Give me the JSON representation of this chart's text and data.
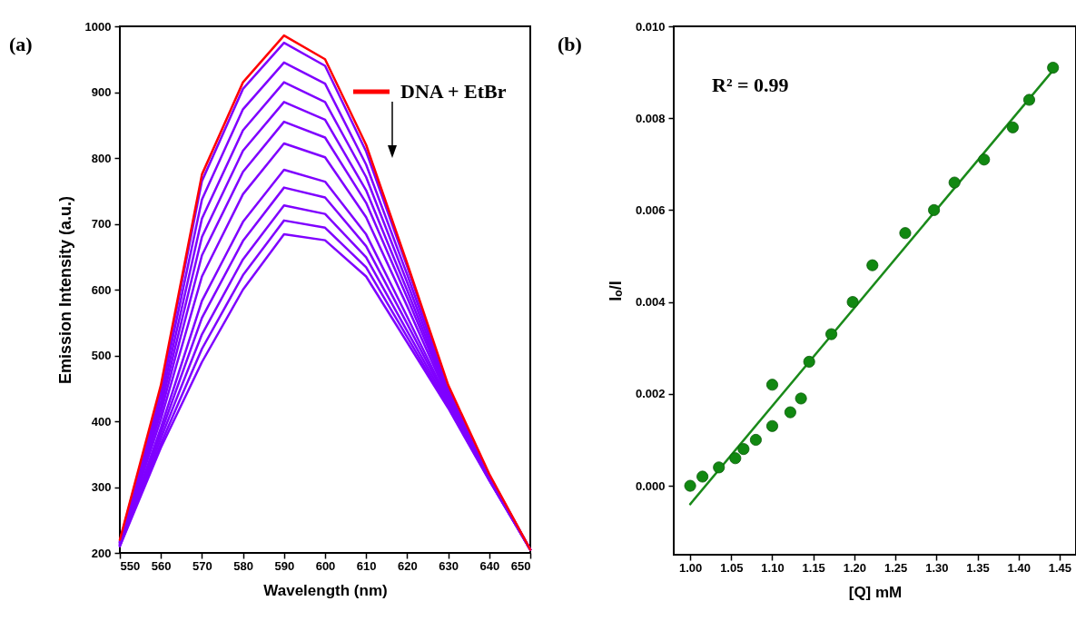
{
  "chart_data": [
    {
      "type": "line",
      "title": "(a)",
      "xlabel": "Wavelength (nm)",
      "ylabel": "Emission Intensity (a.u.)",
      "xlim": [
        550,
        650
      ],
      "ylim": [
        200,
        1000
      ],
      "xticks": [
        550,
        560,
        570,
        580,
        590,
        600,
        610,
        620,
        630,
        640,
        650
      ],
      "yticks": [
        200,
        300,
        400,
        500,
        600,
        700,
        800,
        900,
        1000
      ],
      "legend": "top right",
      "line_style": "solid",
      "x": [
        550,
        560,
        570,
        580,
        590,
        600,
        610,
        620,
        630,
        640,
        650
      ],
      "series": [
        {
          "color": "#7f00ff",
          "values": [
            210,
            360,
            490,
            600,
            684,
            675,
            620,
            520,
            420,
            310,
            205
          ]
        },
        {
          "color": "#7f00ff",
          "values": [
            211,
            366,
            510,
            622,
            705,
            694,
            634,
            528,
            422,
            311,
            205
          ]
        },
        {
          "color": "#7f00ff",
          "values": [
            211,
            374,
            532,
            646,
            728,
            715,
            649,
            537,
            425,
            311,
            205
          ]
        },
        {
          "color": "#7f00ff",
          "values": [
            212,
            382,
            557,
            674,
            755,
            740,
            666,
            548,
            428,
            312,
            205
          ]
        },
        {
          "color": "#7f00ff",
          "values": [
            213,
            390,
            583,
            703,
            782,
            764,
            684,
            559,
            431,
            313,
            205
          ]
        },
        {
          "color": "#7f00ff",
          "values": [
            214,
            403,
            620,
            745,
            822,
            801,
            710,
            575,
            435,
            314,
            205
          ]
        },
        {
          "color": "#7f00ff",
          "values": [
            215,
            413,
            652,
            779,
            855,
            831,
            732,
            588,
            439,
            315,
            205
          ]
        },
        {
          "color": "#7f00ff",
          "values": [
            216,
            422,
            680,
            811,
            885,
            858,
            751,
            599,
            442,
            316,
            205
          ]
        },
        {
          "color": "#7f00ff",
          "values": [
            216,
            431,
            708,
            842,
            915,
            885,
            771,
            611,
            445,
            316,
            205
          ]
        },
        {
          "color": "#7f00ff",
          "values": [
            217,
            441,
            737,
            874,
            945,
            913,
            790,
            623,
            449,
            317,
            205
          ]
        },
        {
          "color": "#7f00ff",
          "values": [
            218,
            450,
            765,
            905,
            975,
            940,
            810,
            635,
            452,
            318,
            205
          ]
        },
        {
          "name": "DNA + EtBr",
          "color": "#ff0000",
          "values": [
            220,
            455,
            775,
            915,
            986,
            950,
            820,
            640,
            455,
            320,
            205
          ]
        }
      ]
    },
    {
      "type": "scatter",
      "title": "(b)",
      "xlabel": "[Q] mM",
      "ylabel": "Iₒ/I",
      "xlim": [
        0.98,
        1.47
      ],
      "ylim": [
        -0.0015,
        0.01
      ],
      "marker": "circle",
      "annotations": [
        "R² = 0.99"
      ],
      "xticks": [
        {
          "value": 1,
          "label": "1.00"
        },
        {
          "value": 1.05,
          "label": "1.05"
        },
        {
          "value": 1.1,
          "label": "1.10"
        },
        {
          "value": 1.15,
          "label": "1.15"
        },
        {
          "value": 1.2,
          "label": "1.20"
        },
        {
          "value": 1.25,
          "label": "1.25"
        },
        {
          "value": 1.3,
          "label": "1.30"
        },
        {
          "value": 1.35,
          "label": "1.35"
        },
        {
          "value": 1.4,
          "label": "1.40"
        },
        {
          "value": 1.45,
          "label": "1.45"
        }
      ],
      "yticks": [
        {
          "value": 0,
          "label": "0.000"
        },
        {
          "value": 0.002,
          "label": "0.002"
        },
        {
          "value": 0.004,
          "label": "0.004"
        },
        {
          "value": 0.006,
          "label": "0.006"
        },
        {
          "value": 0.008,
          "label": "0.008"
        },
        {
          "value": 0.01,
          "label": "0.010"
        }
      ],
      "series": [
        {
          "type": "line",
          "marker": "none",
          "color": "#1a8a1a",
          "x": [
            1,
            1.44
          ],
          "values": [
            -0.0004,
            0.009
          ]
        },
        {
          "color": "#118811",
          "x": [
            1,
            1.015,
            1.035,
            1.055,
            1.065,
            1.08,
            1.1,
            1.1,
            1.122,
            1.135,
            1.145,
            1.172,
            1.198,
            1.222,
            1.262,
            1.297,
            1.322,
            1.358,
            1.393,
            1.413,
            1.442
          ],
          "values": [
            0,
            0.0002,
            0.0004,
            0.0006,
            0.0008,
            0.001,
            0.0022,
            0.0013,
            0.0016,
            0.0019,
            0.0027,
            0.0033,
            0.004,
            0.0048,
            0.0055,
            0.006,
            0.0066,
            0.0071,
            0.0078,
            0.0084,
            0.0091
          ]
        }
      ]
    }
  ]
}
